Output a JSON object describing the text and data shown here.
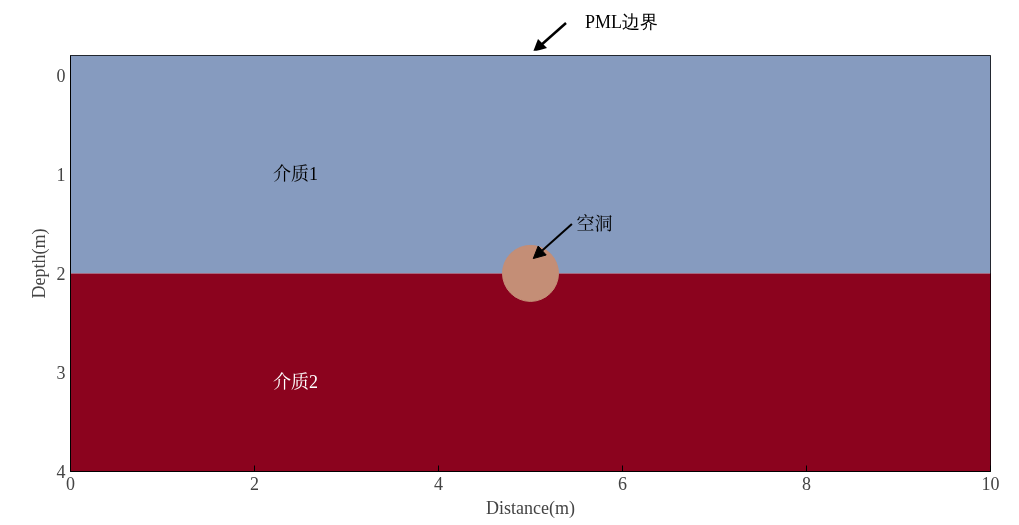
{
  "chart_data": {
    "type": "scatter",
    "xlabel": "Distance(m)",
    "ylabel": "Depth(m)",
    "x": [
      5
    ],
    "values": [
      2
    ],
    "color": "#c48e76",
    "marker": "circle",
    "xlim": [
      0,
      10
    ],
    "xticks": [
      0,
      2,
      4,
      6,
      8,
      10
    ],
    "ylim": [
      4,
      -0.2
    ],
    "yticks": [
      0,
      1,
      2,
      3,
      4
    ],
    "grid": false,
    "bands": [
      {
        "axis": "y",
        "from": -0.2,
        "to": 2,
        "label": "介质1",
        "color": "#869bbf"
      },
      {
        "axis": "y",
        "from": 2,
        "to": 4,
        "label": "介质2",
        "color": "#8b031e"
      }
    ],
    "annotations": [
      "空洞",
      "PML边界"
    ]
  }
}
